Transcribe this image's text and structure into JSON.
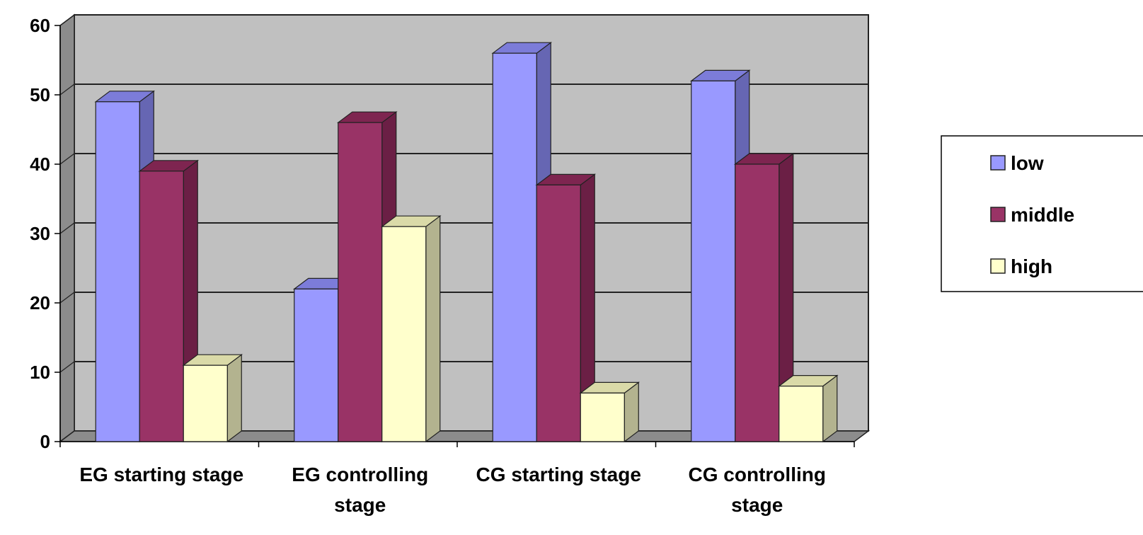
{
  "chart_data": {
    "type": "bar",
    "categories": [
      "EG starting stage",
      "EG controlling stage",
      "CG starting stage",
      "CG controlling stage"
    ],
    "category_lines": [
      [
        "EG starting stage"
      ],
      [
        "EG controlling",
        "stage"
      ],
      [
        "CG starting stage"
      ],
      [
        "CG controlling",
        "stage"
      ]
    ],
    "series": [
      {
        "name": "low",
        "values": [
          49,
          22,
          56,
          52
        ],
        "color": "#9999FF",
        "side_color": "#6666B3",
        "top_color": "#7C7CD9"
      },
      {
        "name": "middle",
        "values": [
          39,
          46,
          37,
          40
        ],
        "color": "#993366",
        "side_color": "#6B1F45",
        "top_color": "#7E2550"
      },
      {
        "name": "high",
        "values": [
          11,
          31,
          7,
          8
        ],
        "color": "#FFFFCC",
        "side_color": "#B3B38F",
        "top_color": "#DADAA8"
      }
    ],
    "ylim": [
      0,
      60
    ],
    "yticks": [
      0,
      10,
      20,
      30,
      40,
      50,
      60
    ],
    "grid": true,
    "three_d": true,
    "legend_position": "right",
    "title": "",
    "xlabel": "",
    "ylabel": ""
  }
}
